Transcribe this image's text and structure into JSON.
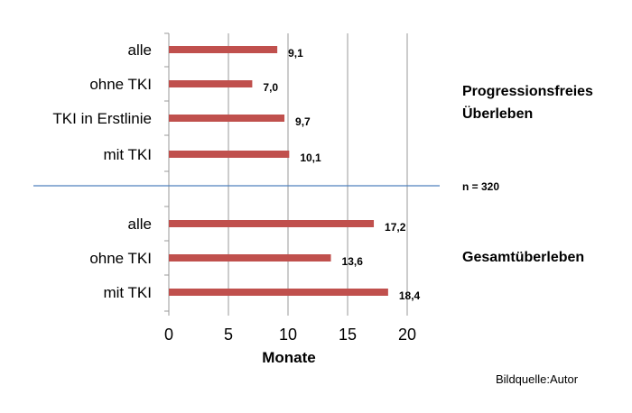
{
  "chart_data": {
    "type": "bar",
    "orientation": "horizontal",
    "xlabel": "Monate",
    "xlim": [
      0,
      22
    ],
    "xticks": [
      0,
      5,
      10,
      15,
      20
    ],
    "grid": true,
    "bar_color": "#C0504D",
    "divider_color": "#4F81BD",
    "groups": [
      {
        "label_lines": [
          "Progressionsfreies",
          "Überleben"
        ],
        "bars": [
          {
            "category": "alle",
            "value": 9.1,
            "label": "9,1"
          },
          {
            "category": "ohne TKI",
            "value": 7.0,
            "label": "7,0"
          },
          {
            "category": "TKI in Erstlinie",
            "value": 9.7,
            "label": "9,7"
          },
          {
            "category": "mit TKI",
            "value": 10.1,
            "label": "10,1"
          }
        ]
      },
      {
        "label_lines": [
          "Gesamtüberleben"
        ],
        "bars": [
          {
            "category": "alle",
            "value": 17.2,
            "label": "17,2"
          },
          {
            "category": "ohne TKI",
            "value": 13.6,
            "label": "13,6"
          },
          {
            "category": "mit TKI",
            "value": 18.4,
            "label": "18,4"
          }
        ]
      }
    ],
    "annotation": "n = 320"
  },
  "source": "Bildquelle:Autor"
}
